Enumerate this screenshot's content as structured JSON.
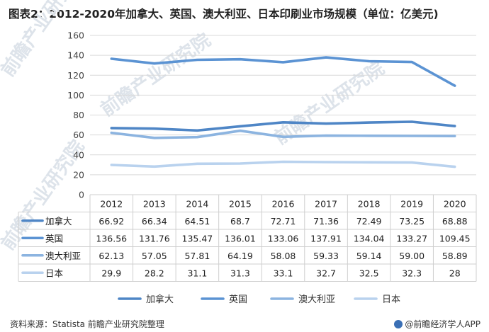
{
  "title": "图表2：2012-2020年加拿大、英国、澳大利亚、日本印刷业市场规模（单位：亿美元)",
  "source": "资料来源：Statista 前瞻产业研究院整理",
  "brand": "@前瞻经济学人APP",
  "watermark": "前瞻产业研究院",
  "chart_data": {
    "type": "line",
    "title": "图表2：2012-2020年加拿大、英国、澳大利亚、日本印刷业市场规模（单位：亿美元)",
    "ylabel": "",
    "xlabel": "",
    "ylim": [
      0,
      160
    ],
    "yticks": [
      "0",
      "20",
      "40",
      "60",
      "80",
      "100",
      "120",
      "140",
      "160"
    ],
    "categories": [
      "2012",
      "2013",
      "2014",
      "2015",
      "2016",
      "2017",
      "2018",
      "2019",
      "2020"
    ],
    "grid": true,
    "legend_position": "bottom",
    "series": [
      {
        "name": "加拿大",
        "color": "#4f86c6",
        "values": [
          66.92,
          66.34,
          64.51,
          68.7,
          72.71,
          71.36,
          72.49,
          73.25,
          68.88
        ],
        "labels": [
          "66.92",
          "66.34",
          "64.51",
          "68.7",
          "72.71",
          "71.36",
          "72.49",
          "73.25",
          "68.88"
        ]
      },
      {
        "name": "英国",
        "color": "#5b93d3",
        "values": [
          136.56,
          131.76,
          135.47,
          136.01,
          133.06,
          137.91,
          134.04,
          133.27,
          109.45
        ],
        "labels": [
          "136.56",
          "131.76",
          "135.47",
          "136.01",
          "133.06",
          "137.91",
          "134.04",
          "133.27",
          "109.45"
        ]
      },
      {
        "name": "澳大利亚",
        "color": "#8cb4e0",
        "values": [
          62.13,
          57.05,
          57.81,
          64.19,
          58.08,
          59.33,
          59.14,
          59.0,
          58.89
        ],
        "labels": [
          "62.13",
          "57.05",
          "57.81",
          "64.19",
          "58.08",
          "59.33",
          "59.14",
          "59.00",
          "58.89"
        ]
      },
      {
        "name": "日本",
        "color": "#b9d2ee",
        "values": [
          29.9,
          28.2,
          31.1,
          31.3,
          33.1,
          32.7,
          32.5,
          32.3,
          28
        ],
        "labels": [
          "29.9",
          "28.2",
          "31.1",
          "31.3",
          "33.1",
          "32.7",
          "32.5",
          "32.3",
          "28"
        ]
      }
    ]
  }
}
